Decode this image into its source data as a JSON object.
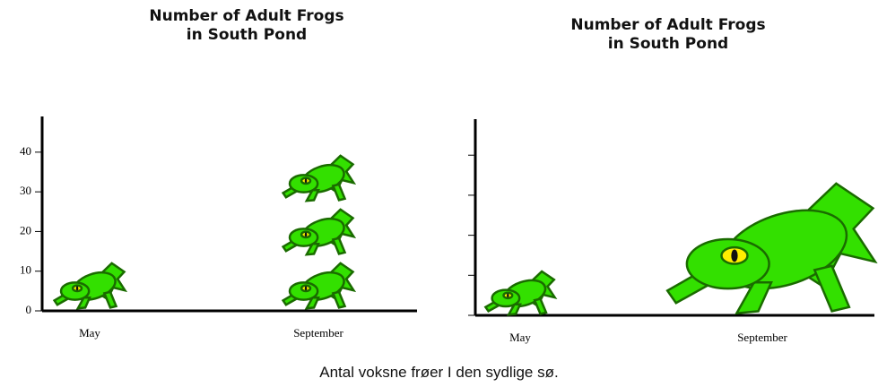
{
  "charts": [
    {
      "type": "pictograph",
      "title": "Number of Adult Frogs in South Pond",
      "categories": [
        "May",
        "September"
      ],
      "values": [
        10,
        30
      ],
      "unit": 10,
      "ylim": [
        0,
        49
      ],
      "yticks": [
        0,
        10,
        20,
        30,
        40
      ],
      "show_tick_labels": true,
      "color": "#33e000"
    },
    {
      "type": "scaled",
      "title": "Number of Adult Frogs in South Pond",
      "categories": [
        "May",
        "September"
      ],
      "values": [
        10,
        30
      ],
      "ylim": [
        0,
        49
      ],
      "yticks": [
        0,
        10,
        20,
        30,
        40
      ],
      "show_tick_labels": false,
      "color": "#33e000"
    }
  ],
  "caption": "Antal voksne frøer I den sydlige sø."
}
